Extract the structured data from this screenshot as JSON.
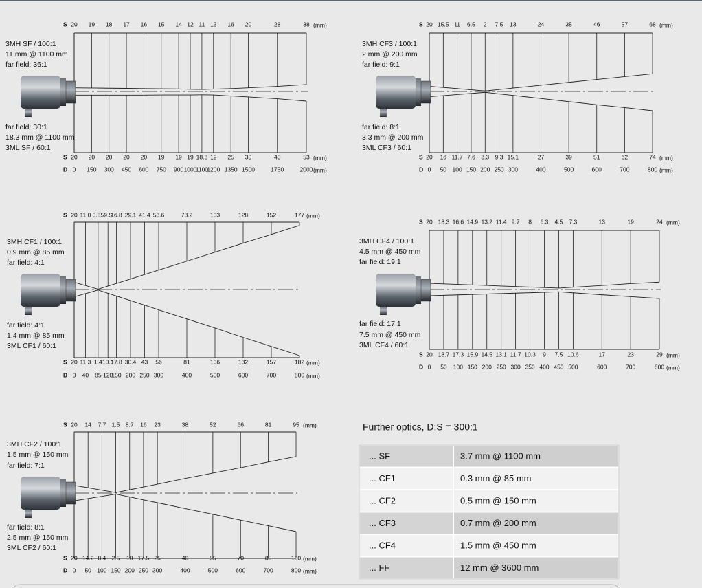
{
  "diagrams": [
    {
      "top_labels": [
        "3MH SF / 100:1",
        "11 mm @ 1100 mm",
        "far field: 36:1"
      ],
      "bottom_labels": [
        "far field: 30:1",
        "18.3 mm @ 1100 mm",
        "3ML SF / 60:1"
      ],
      "s_label": "S",
      "d_label": "D",
      "unit": "(mm)",
      "s_top": [
        "20",
        "19",
        "18",
        "17",
        "16",
        "15",
        "14",
        "12",
        "11",
        "13",
        "16",
        "20",
        "28",
        "38"
      ],
      "s_bottom": [
        "20",
        "20",
        "20",
        "20",
        "20",
        "19",
        "19",
        "19",
        "18.3",
        "19",
        "25",
        "30",
        "40",
        "53"
      ],
      "d": [
        "0",
        "150",
        "300",
        "450",
        "600",
        "750",
        "900",
        "1000",
        "1100",
        "1200",
        "1350",
        "1500",
        "1750",
        "2000"
      ]
    },
    {
      "top_labels": [
        "3MH CF3 / 100:1",
        "2 mm @ 200 mm",
        "far field: 9:1"
      ],
      "bottom_labels": [
        "far field: 8:1",
        "3.3 mm @ 200 mm",
        "3ML CF3 / 60:1"
      ],
      "s_label": "S",
      "d_label": "D",
      "unit": "(mm)",
      "s_top": [
        "20",
        "15.5",
        "11",
        "6.5",
        "2",
        "7.5",
        "13",
        "24",
        "35",
        "46",
        "57",
        "68"
      ],
      "s_bottom": [
        "20",
        "16",
        "11.7",
        "7.6",
        "3.3",
        "9.3",
        "15.1",
        "27",
        "39",
        "51",
        "62",
        "74"
      ],
      "d": [
        "0",
        "50",
        "100",
        "150",
        "200",
        "250",
        "300",
        "400",
        "500",
        "600",
        "700",
        "800"
      ]
    },
    {
      "top_labels": [
        "3MH CF1 / 100:1",
        "0.9 mm @ 85 mm",
        "far field: 4:1"
      ],
      "bottom_labels": [
        "far field: 4:1",
        "1.4 mm @ 85 mm",
        "3ML CF1 / 60:1"
      ],
      "s_label": "S",
      "d_label": "D",
      "unit": "(mm)",
      "s_top": [
        "20",
        "11.0",
        "0.85",
        "9.5",
        "16.8",
        "29.1",
        "41.4",
        "53.6",
        "78.2",
        "103",
        "128",
        "152",
        "177"
      ],
      "s_bottom": [
        "20",
        "11.3",
        "1.4",
        "10.3",
        "17.8",
        "30.4",
        "43",
        "56",
        "81",
        "106",
        "132",
        "157",
        "182"
      ],
      "d": [
        "0",
        "40",
        "85",
        "120",
        "150",
        "200",
        "250",
        "300",
        "400",
        "500",
        "600",
        "700",
        "800"
      ]
    },
    {
      "top_labels": [
        "3MH CF4 / 100:1",
        "4.5 mm @ 450 mm",
        "far field: 19:1"
      ],
      "bottom_labels": [
        "far field: 17:1",
        "7.5 mm @ 450 mm",
        "3ML CF4 / 60:1"
      ],
      "s_label": "S",
      "d_label": "D",
      "unit": "(mm)",
      "s_top": [
        "20",
        "18.3",
        "16.6",
        "14.9",
        "13.2",
        "11.4",
        "9.7",
        "8",
        "6.3",
        "4.5",
        "7.3",
        "13",
        "19",
        "24"
      ],
      "s_bottom": [
        "20",
        "18.7",
        "17.3",
        "15.9",
        "14.5",
        "13.1",
        "11.7",
        "10.3",
        "9",
        "7.5",
        "10.6",
        "17",
        "23",
        "29"
      ],
      "d": [
        "0",
        "50",
        "100",
        "150",
        "200",
        "250",
        "300",
        "350",
        "400",
        "450",
        "500",
        "600",
        "700",
        "800"
      ]
    },
    {
      "top_labels": [
        "3MH CF2 / 100:1",
        "1.5 mm @ 150 mm",
        "far field: 7:1"
      ],
      "bottom_labels": [
        "far field: 8:1",
        "2.5 mm @ 150 mm",
        "3ML CF2 / 60:1"
      ],
      "s_label": "S",
      "d_label": "D",
      "unit": "(mm)",
      "s_top": [
        "20",
        "14",
        "7.7",
        "1.5",
        "8.7",
        "16",
        "23",
        "38",
        "52",
        "66",
        "81",
        "95"
      ],
      "s_bottom": [
        "20",
        "14.2",
        "8.4",
        "2.5",
        "10",
        "17.5",
        "25",
        "40",
        "55",
        "70",
        "85",
        "100"
      ],
      "d": [
        "0",
        "50",
        "100",
        "150",
        "200",
        "250",
        "300",
        "400",
        "500",
        "600",
        "700",
        "800"
      ]
    }
  ],
  "table": {
    "title": "Further optics, D:S = 300:1",
    "rows": [
      [
        "... SF",
        "3.7 mm @ 1100 mm"
      ],
      [
        "... CF1",
        "0.3 mm @ 85 mm"
      ],
      [
        "... CF2",
        "0.5 mm @ 150 mm"
      ],
      [
        "... CF3",
        "0.7 mm @ 200 mm"
      ],
      [
        "... CF4",
        "1.5 mm @ 450 mm"
      ],
      [
        "... FF",
        "12 mm @ 3600 mm"
      ]
    ]
  }
}
